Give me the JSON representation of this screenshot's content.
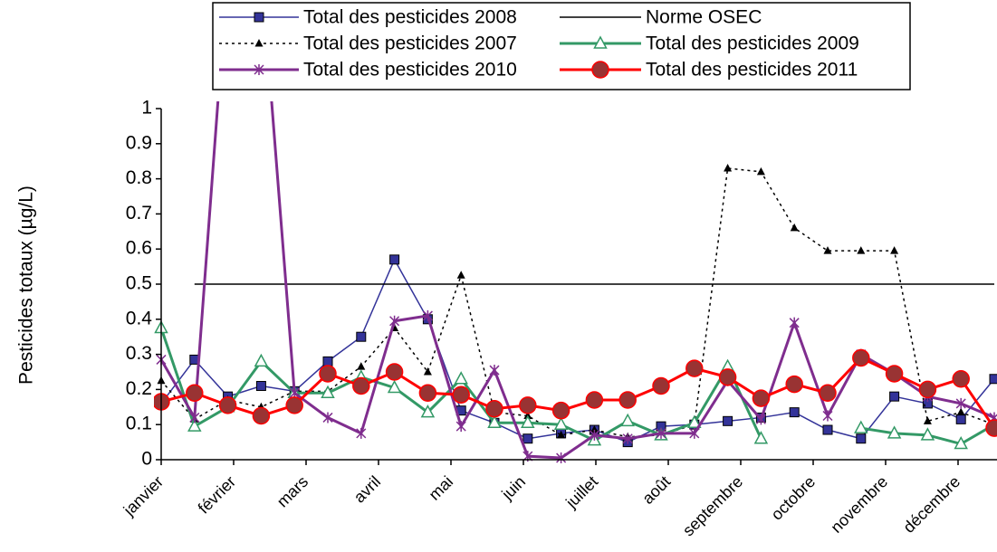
{
  "chart_data": {
    "type": "line",
    "y_label": "Pesticides totaux (µg/L)",
    "xlim": [
      0,
      11.54
    ],
    "xticks": [
      {
        "value": 0,
        "label": "janvier"
      },
      {
        "value": 1,
        "label": "février"
      },
      {
        "value": 2,
        "label": "mars"
      },
      {
        "value": 3,
        "label": "avril"
      },
      {
        "value": 4,
        "label": "mai"
      },
      {
        "value": 5,
        "label": "juin"
      },
      {
        "value": 6,
        "label": "juillet"
      },
      {
        "value": 7,
        "label": "août"
      },
      {
        "value": 8,
        "label": "septembre"
      },
      {
        "value": 9,
        "label": "octobre"
      },
      {
        "value": 10,
        "label": "novembre"
      },
      {
        "value": 11,
        "label": "décembre"
      }
    ],
    "ylim": [
      0,
      1
    ],
    "yticks": [
      0,
      0.1,
      0.2,
      0.3,
      0.4,
      0.5,
      0.6,
      0.7,
      0.8,
      0.9,
      1
    ],
    "grid": false,
    "x": [
      0,
      0.46,
      0.92,
      1.38,
      1.84,
      2.3,
      2.76,
      3.22,
      3.68,
      4.14,
      4.6,
      5.06,
      5.52,
      5.98,
      6.44,
      6.9,
      7.36,
      7.82,
      8.28,
      8.74,
      9.2,
      9.66,
      10.12,
      10.58,
      11.04,
      11.5
    ],
    "series": [
      {
        "name": "Total des pesticides 2008",
        "color": "#333399",
        "marker": "square",
        "dash": "solid",
        "width": 1.5,
        "values": [
          0.16,
          0.285,
          0.18,
          0.21,
          0.195,
          0.28,
          0.35,
          0.57,
          0.4,
          0.14,
          0.105,
          0.06,
          0.075,
          0.085,
          0.05,
          0.095,
          0.1,
          0.11,
          0.12,
          0.135,
          0.085,
          0.06,
          0.18,
          0.16,
          0.115,
          0.23
        ]
      },
      {
        "name": "Norme OSEC",
        "color": "#000000",
        "marker": "none",
        "dash": "solid",
        "width": 1.5,
        "values": [
          null,
          0.5,
          0.5,
          0.5,
          0.5,
          0.5,
          0.5,
          0.5,
          0.5,
          0.5,
          0.5,
          0.5,
          0.5,
          0.5,
          0.5,
          0.5,
          0.5,
          0.5,
          0.5,
          0.5,
          0.5,
          0.5,
          0.5,
          0.5,
          0.5,
          0.5
        ]
      },
      {
        "name": "Total des pesticides 2007",
        "color": "#000000",
        "marker": "triangle",
        "dash": "dotted",
        "width": 1.5,
        "values": [
          0.225,
          0.115,
          0.17,
          0.15,
          0.195,
          0.195,
          0.265,
          0.375,
          0.25,
          0.525,
          0.135,
          0.125,
          0.07,
          0.085,
          0.065,
          0.07,
          0.1,
          0.83,
          0.82,
          0.66,
          0.595,
          0.595,
          0.595,
          0.11,
          0.135,
          0.1
        ]
      },
      {
        "name": "Total des pesticides 2009",
        "color": "#339966",
        "marker": "triangle-open",
        "dash": "solid",
        "width": 3,
        "values": [
          0.375,
          0.095,
          0.15,
          0.28,
          0.19,
          0.19,
          0.235,
          0.205,
          0.135,
          0.23,
          0.105,
          0.105,
          0.1,
          0.055,
          0.11,
          0.07,
          0.105,
          0.265,
          0.06,
          null,
          null,
          0.09,
          0.075,
          0.07,
          0.045,
          0.1
        ]
      },
      {
        "name": "Total des pesticides 2010",
        "color": "#7F2D8E",
        "marker": "star",
        "dash": "solid",
        "width": 3,
        "values": [
          0.285,
          0.12,
          1.4,
          1.4,
          0.19,
          0.12,
          0.075,
          0.395,
          0.41,
          0.095,
          0.255,
          0.01,
          0.005,
          0.07,
          0.06,
          0.075,
          0.075,
          0.225,
          0.115,
          0.39,
          0.125,
          0.3,
          0.245,
          0.18,
          0.16,
          0.12
        ]
      },
      {
        "name": "Total des pesticides 2011",
        "color": "#FF0000",
        "marker": "circle",
        "dash": "solid",
        "width": 3,
        "values": [
          0.165,
          0.19,
          0.155,
          0.125,
          0.155,
          0.245,
          0.21,
          0.25,
          0.19,
          0.185,
          0.145,
          0.155,
          0.14,
          0.17,
          0.17,
          0.21,
          0.26,
          0.235,
          0.175,
          0.215,
          0.19,
          0.29,
          0.245,
          0.2,
          0.23,
          0.09
        ]
      }
    ]
  }
}
